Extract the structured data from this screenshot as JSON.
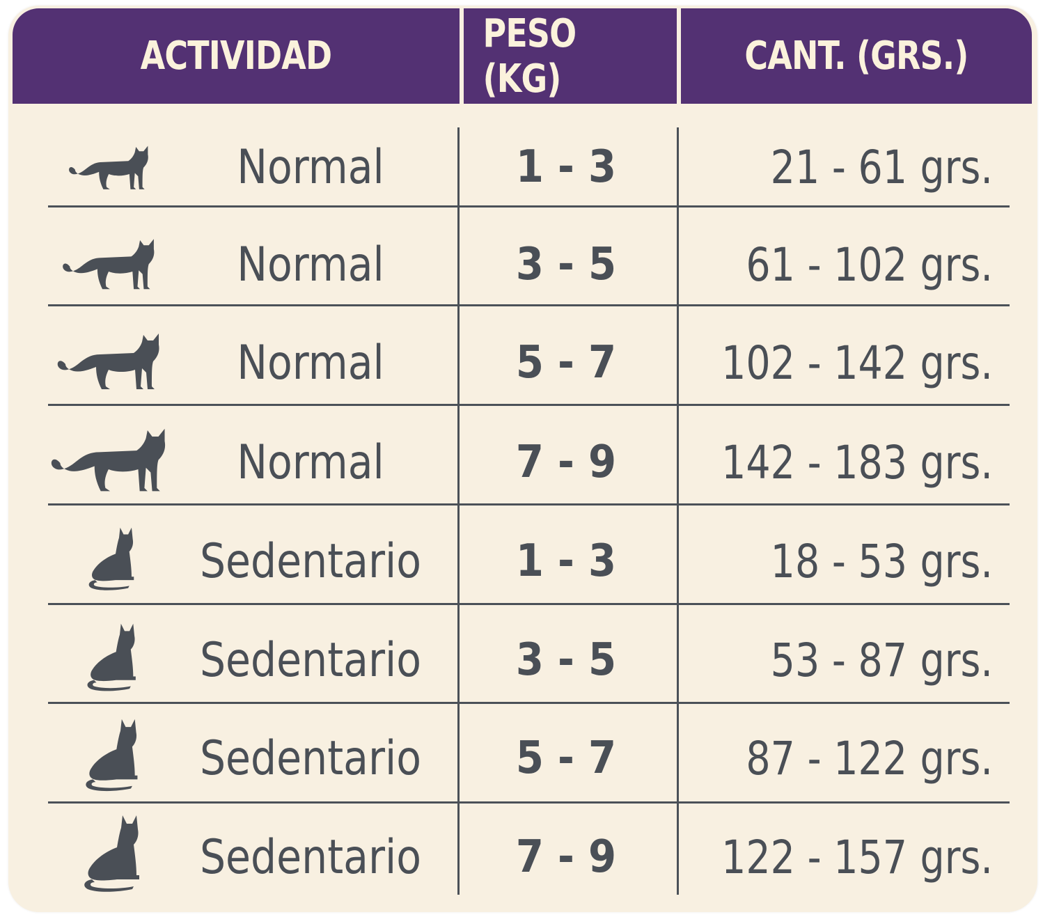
{
  "table": {
    "headers": [
      "ACTIVIDAD",
      "PESO (KG)",
      "CANT. (GRS.)"
    ],
    "rows": [
      {
        "icon": "walking-cat-icon",
        "activity": "Normal",
        "weight": "1 - 3",
        "amount": "21 - 61",
        "unit": "grs."
      },
      {
        "icon": "walking-cat-icon",
        "activity": "Normal",
        "weight": "3 - 5",
        "amount": "61 - 102",
        "unit": "grs."
      },
      {
        "icon": "walking-cat-icon",
        "activity": "Normal",
        "weight": "5 - 7",
        "amount": "102 - 142",
        "unit": "grs."
      },
      {
        "icon": "walking-cat-icon",
        "activity": "Normal",
        "weight": "7 - 9",
        "amount": "142 - 183",
        "unit": "grs."
      },
      {
        "icon": "sitting-cat-icon",
        "activity": "Sedentario",
        "weight": "1 - 3",
        "amount": "18 - 53",
        "unit": "grs."
      },
      {
        "icon": "sitting-cat-icon",
        "activity": "Sedentario",
        "weight": "3 - 5",
        "amount": "53 - 87",
        "unit": "grs."
      },
      {
        "icon": "sitting-cat-icon",
        "activity": "Sedentario",
        "weight": "5 - 7",
        "amount": "87 - 122",
        "unit": "grs."
      },
      {
        "icon": "sitting-cat-icon",
        "activity": "Sedentario",
        "weight": "7 - 9",
        "amount": "122 - 157",
        "unit": "grs."
      }
    ]
  },
  "colors": {
    "header_bg": "#533173",
    "header_text": "#fbf2dc",
    "card_bg": "#f8f0e1",
    "text": "#4a4f56"
  }
}
